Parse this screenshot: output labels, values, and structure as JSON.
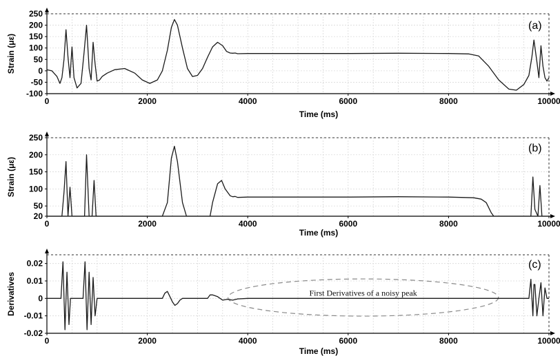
{
  "chart_data": [
    {
      "type": "line",
      "panel_label": "(a)",
      "xlabel": "Time (ms)",
      "ylabel": "Strain (με)",
      "xlim": [
        0,
        10000
      ],
      "ylim": [
        -100,
        250
      ],
      "xticks": [
        "0",
        "2000",
        "4000",
        "6000",
        "8000",
        "10000"
      ],
      "yticks": [
        "250",
        "200",
        "150",
        "100",
        "50",
        "0",
        "-50",
        "-100"
      ],
      "grid": true,
      "series": [
        {
          "x": [
            0,
            100,
            200,
            260,
            300,
            340,
            380,
            420,
            460,
            500,
            540,
            600,
            680,
            740,
            790,
            840,
            880,
            920,
            960,
            1000,
            1050,
            1100,
            1200,
            1350,
            1550,
            1750,
            1900,
            2050,
            2200,
            2300,
            2400,
            2480,
            2540,
            2600,
            2700,
            2800,
            2900,
            3000,
            3100,
            3200,
            3300,
            3400,
            3500,
            3580,
            3650,
            3700,
            3750,
            3800,
            4000,
            5000,
            6000,
            7000,
            8000,
            8400,
            8600,
            8800,
            9000,
            9200,
            9350,
            9500,
            9600,
            9660,
            9700,
            9760,
            9800,
            9840,
            9880,
            9920,
            9960,
            10000
          ],
          "y": [
            5,
            0,
            -25,
            -55,
            -30,
            50,
            180,
            60,
            -30,
            105,
            -30,
            -75,
            -55,
            80,
            200,
            10,
            -40,
            125,
            30,
            -45,
            -40,
            -25,
            -10,
            5,
            10,
            -10,
            -40,
            -55,
            -40,
            0,
            90,
            190,
            225,
            200,
            100,
            10,
            -25,
            -20,
            10,
            60,
            105,
            125,
            110,
            85,
            78,
            77,
            78,
            75,
            76,
            76,
            76,
            77,
            76,
            74,
            65,
            20,
            -40,
            -80,
            -85,
            -60,
            -20,
            60,
            135,
            40,
            -30,
            110,
            20,
            -30,
            -45,
            -30
          ]
        }
      ]
    },
    {
      "type": "line",
      "panel_label": "(b)",
      "xlabel": "Time (ms)",
      "ylabel": "Strain (με)",
      "xlim": [
        0,
        10000
      ],
      "ylim": [
        20,
        250
      ],
      "xticks": [
        "0",
        "2000",
        "4000",
        "6000",
        "8000",
        "10000"
      ],
      "yticks": [
        "250",
        "200",
        "150",
        "100",
        "50",
        "20"
      ],
      "grid": true,
      "series": [
        {
          "x": [
            0,
            300,
            340,
            380,
            420,
            460,
            500,
            540,
            750,
            790,
            840,
            900,
            940,
            980,
            2300,
            2400,
            2480,
            2540,
            2600,
            2700,
            2780,
            3250,
            3300,
            3400,
            3480,
            3550,
            3650,
            3700,
            3750,
            3800,
            4000,
            5000,
            6000,
            7000,
            8000,
            8500,
            8650,
            8750,
            8850,
            8900,
            9600,
            9640,
            9680,
            9720,
            9780,
            9820,
            9860,
            9900,
            10000
          ],
          "y": [
            20,
            20,
            90,
            180,
            20,
            105,
            20,
            20,
            20,
            200,
            20,
            20,
            125,
            20,
            20,
            60,
            190,
            225,
            180,
            60,
            20,
            20,
            60,
            115,
            125,
            100,
            80,
            77,
            78,
            75,
            76,
            76,
            76,
            77,
            76,
            74,
            70,
            60,
            30,
            20,
            20,
            20,
            135,
            40,
            20,
            110,
            20,
            20,
            20
          ]
        }
      ]
    },
    {
      "type": "line",
      "panel_label": "(c)",
      "xlabel": "Time (ms)",
      "ylabel": "Derivatives",
      "xlim": [
        0,
        10000
      ],
      "ylim": [
        -0.02,
        0.025
      ],
      "xticks": [
        "0",
        "2000",
        "4000",
        "6000",
        "8000",
        "10000"
      ],
      "yticks": [
        "0.02",
        "0.01",
        "0",
        "-0.01",
        "-0.02"
      ],
      "grid": true,
      "annotation": "First Derivatives of a noisy peak",
      "series": [
        {
          "x": [
            0,
            280,
            320,
            360,
            400,
            440,
            470,
            500,
            540,
            600,
            720,
            760,
            800,
            840,
            880,
            920,
            960,
            1000,
            1040,
            1080,
            2300,
            2350,
            2400,
            2450,
            2500,
            2550,
            2600,
            2650,
            2700,
            2800,
            3200,
            3250,
            3300,
            3400,
            3500,
            3600,
            3700,
            3800,
            4000,
            8000,
            9600,
            9640,
            9680,
            9700,
            9720,
            9760,
            9800,
            9840,
            9880,
            9920,
            9960,
            10000
          ],
          "y": [
            0,
            0,
            0.021,
            -0.018,
            0.015,
            -0.015,
            0,
            0,
            0,
            0,
            0,
            0.021,
            -0.018,
            0.015,
            -0.015,
            0.012,
            -0.01,
            0,
            0,
            0,
            0,
            0.003,
            0.004,
            0.001,
            -0.002,
            -0.004,
            -0.003,
            -0.001,
            0,
            0,
            0,
            0.002,
            0.002,
            0.001,
            -0.001,
            -0.0005,
            -0.001,
            -0.0003,
            0,
            0,
            0,
            0.011,
            -0.01,
            0.008,
            0.008,
            -0.01,
            0,
            0.009,
            -0.01,
            0.006,
            0,
            0
          ]
        }
      ]
    }
  ]
}
